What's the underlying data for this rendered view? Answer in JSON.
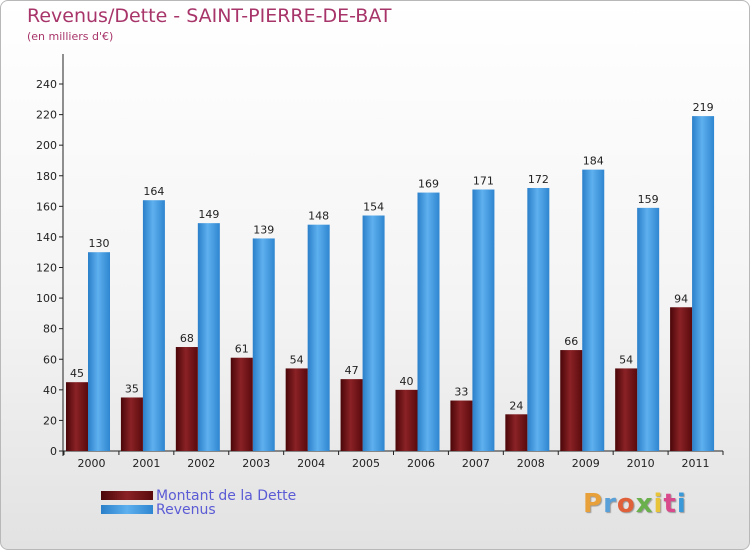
{
  "title": "Revenus/Dette - SAINT-PIERRE-DE-BAT",
  "subtitle": "(en milliers d'€)",
  "logo": "Proxiti",
  "colors": {
    "dette": "#6e0f12",
    "revenus": "#3b93da",
    "title": "#a8356a",
    "legend_text": "#5b5bd6"
  },
  "chart_data": {
    "type": "bar",
    "categories": [
      "2000",
      "2001",
      "2002",
      "2003",
      "2004",
      "2005",
      "2006",
      "2007",
      "2008",
      "2009",
      "2010",
      "2011"
    ],
    "series": [
      {
        "name": "Montant de la Dette",
        "values": [
          45,
          35,
          68,
          61,
          54,
          47,
          40,
          33,
          24,
          66,
          54,
          94
        ]
      },
      {
        "name": "Revenus",
        "values": [
          130,
          164,
          149,
          139,
          148,
          154,
          169,
          171,
          172,
          184,
          159,
          219
        ]
      }
    ],
    "yticks": [
      0,
      20,
      40,
      60,
      80,
      100,
      120,
      140,
      160,
      180,
      200,
      220,
      240
    ],
    "ylim": [
      0,
      240
    ],
    "grid": false,
    "legend": "bottom-left"
  }
}
